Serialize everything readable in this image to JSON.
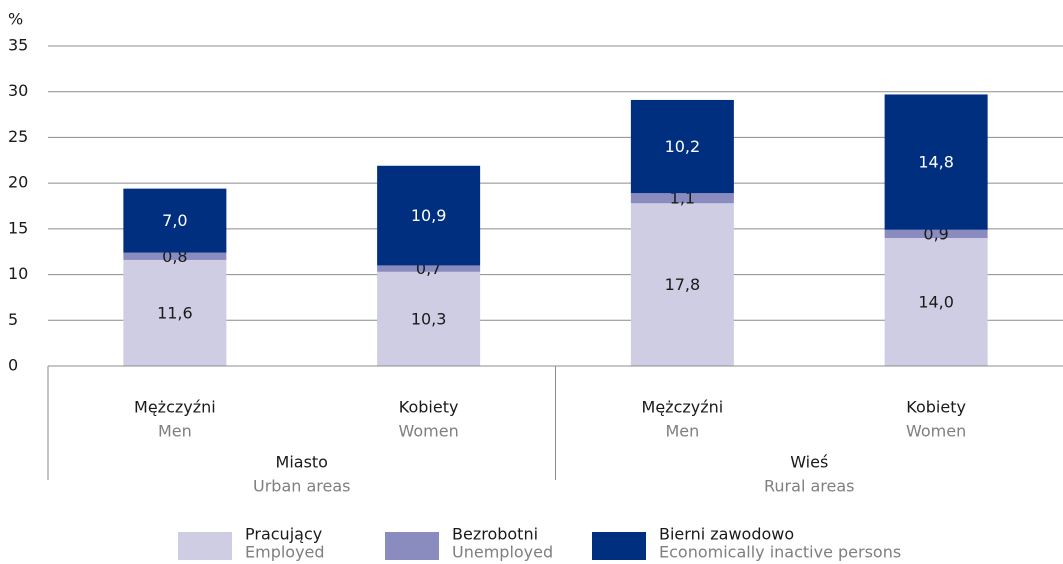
{
  "chart_data": {
    "type": "stacked_bar",
    "y_unit": "%",
    "groups": [
      {
        "label": "Miasto",
        "label_en": "Urban areas",
        "categories": [
          {
            "label": "Mężczyźni",
            "label_en": "Men"
          },
          {
            "label": "Kobiety",
            "label_en": "Women"
          }
        ]
      },
      {
        "label": "Wieś",
        "label_en": "Rural areas",
        "categories": [
          {
            "label": "Mężczyźni",
            "label_en": "Men"
          },
          {
            "label": "Kobiety",
            "label_en": "Women"
          }
        ]
      }
    ],
    "series": [
      {
        "name": "Pracujący",
        "name_en": "Employed",
        "color": "#cfcde3",
        "label_color": "#1a1a1a",
        "values": [
          11.6,
          10.3,
          17.8,
          14.0
        ],
        "value_labels": [
          "11,6",
          "10,3",
          "17,8",
          "14,0"
        ]
      },
      {
        "name": "Bezrobotni",
        "name_en": "Unemployed",
        "color": "#8a8cc0",
        "label_color": "#1a1a1a",
        "values": [
          0.8,
          0.7,
          1.1,
          0.9
        ],
        "value_labels": [
          "0,8",
          "0,7",
          "1,1",
          "0,9"
        ]
      },
      {
        "name": "Bierni zawodowo",
        "name_en": "Economically inactive persons",
        "color": "#002f7f",
        "label_color": "#ffffff",
        "values": [
          7.0,
          10.9,
          10.2,
          14.8
        ],
        "value_labels": [
          "7,0",
          "10,9",
          "10,2",
          "14,8"
        ]
      }
    ],
    "ylim": [
      0,
      35
    ],
    "yticks": [
      0,
      5,
      10,
      15,
      20,
      25,
      30,
      35
    ],
    "grid": true
  }
}
